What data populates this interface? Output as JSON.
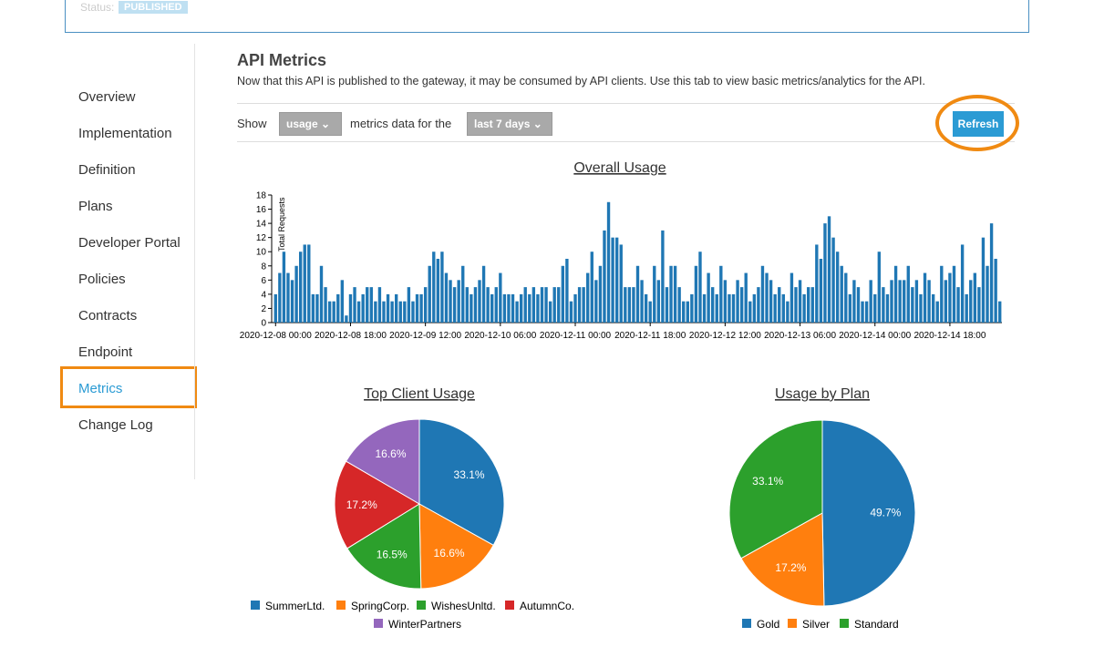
{
  "header": {
    "status_label": "Status:",
    "status_value": "PUBLISHED"
  },
  "nav": {
    "items": [
      "Overview",
      "Implementation",
      "Definition",
      "Plans",
      "Developer Portal",
      "Policies",
      "Contracts",
      "Endpoint",
      "Metrics",
      "Change Log"
    ]
  },
  "content": {
    "title": "API Metrics",
    "description": "Now that this API is published to the gateway, it may be consumed by API clients. Use this tab to view basic metrics/analytics for the API.",
    "show_label": "Show",
    "metric_select": "usage",
    "middle_label": "metrics data for the",
    "range_select": "last 7 days",
    "refresh_button": "Refresh"
  },
  "chart_data": [
    {
      "type": "bar",
      "title": "Overall Usage",
      "y_label": "Total Requests",
      "color": "#1f77b4",
      "ylim": [
        0,
        18
      ],
      "yticks": [
        0,
        2,
        4,
        6,
        8,
        10,
        12,
        14,
        16,
        18
      ],
      "categories": [
        "2020-12-08 00:00",
        null,
        null,
        null,
        null,
        null,
        null,
        null,
        null,
        null,
        null,
        null,
        null,
        null,
        null,
        null,
        null,
        null,
        "2020-12-08 18:00",
        null,
        null,
        null,
        null,
        null,
        null,
        null,
        null,
        null,
        null,
        null,
        null,
        null,
        null,
        null,
        null,
        null,
        "2020-12-09 12:00",
        null,
        null,
        null,
        null,
        null,
        null,
        null,
        null,
        null,
        null,
        null,
        null,
        null,
        null,
        null,
        null,
        null,
        "2020-12-10 06:00",
        null,
        null,
        null,
        null,
        null,
        null,
        null,
        null,
        null,
        null,
        null,
        null,
        null,
        null,
        null,
        null,
        null,
        "2020-12-11 00:00",
        null,
        null,
        null,
        null,
        null,
        null,
        null,
        null,
        null,
        null,
        null,
        null,
        null,
        null,
        null,
        null,
        null,
        "2020-12-11 18:00",
        null,
        null,
        null,
        null,
        null,
        null,
        null,
        null,
        null,
        null,
        null,
        null,
        null,
        null,
        null,
        null,
        null,
        "2020-12-12 12:00",
        null,
        null,
        null,
        null,
        null,
        null,
        null,
        null,
        null,
        null,
        null,
        null,
        null,
        null,
        null,
        null,
        null,
        "2020-12-13 06:00",
        null,
        null,
        null,
        null,
        null,
        null,
        null,
        null,
        null,
        null,
        null,
        null,
        null,
        null,
        null,
        null,
        null,
        "2020-12-14 00:00",
        null,
        null,
        null,
        null,
        null,
        null,
        null,
        null,
        null,
        null,
        null,
        null,
        null,
        null,
        null,
        null,
        null,
        "2020-12-14 18:00",
        null,
        null,
        null,
        null,
        null,
        null,
        null,
        null,
        null,
        null,
        null,
        null
      ],
      "values": [
        4,
        7,
        10,
        7,
        6,
        8,
        10,
        11,
        11,
        4,
        4,
        8,
        5,
        3,
        3,
        4,
        6,
        1,
        4,
        5,
        3,
        4,
        5,
        5,
        3,
        5,
        3,
        4,
        3,
        4,
        3,
        3,
        5,
        3,
        4,
        4,
        5,
        8,
        10,
        9,
        10,
        7,
        6,
        5,
        6,
        8,
        5,
        4,
        5,
        6,
        8,
        5,
        4,
        5,
        7,
        4,
        4,
        4,
        3,
        4,
        5,
        4,
        5,
        4,
        5,
        5,
        3,
        5,
        5,
        8,
        9,
        3,
        4,
        5,
        5,
        7,
        10,
        6,
        8,
        13,
        17,
        12,
        12,
        11,
        5,
        5,
        5,
        8,
        6,
        4,
        3,
        8,
        6,
        13,
        5,
        8,
        8,
        5,
        3,
        3,
        4,
        8,
        10,
        4,
        7,
        5,
        4,
        8,
        6,
        4,
        4,
        6,
        5,
        7,
        3,
        4,
        5,
        8,
        7,
        6,
        4,
        5,
        4,
        3,
        7,
        5,
        6,
        4,
        5,
        5,
        11,
        9,
        14,
        15,
        12,
        10,
        8,
        7,
        4,
        6,
        5,
        3,
        3,
        6,
        4,
        10,
        5,
        4,
        6,
        8,
        6,
        6,
        8,
        5,
        6,
        4,
        7,
        6,
        4,
        3,
        8,
        6,
        7,
        8,
        5,
        11,
        4,
        6,
        7,
        5,
        12,
        8,
        14,
        9,
        3
      ]
    },
    {
      "type": "pie",
      "title": "Top Client Usage",
      "categories": [
        "SummerLtd.",
        "SpringCorp.",
        "WishesUnltd.",
        "AutumnCo.",
        "WinterPartners"
      ],
      "values": [
        33.1,
        16.6,
        16.5,
        17.2,
        16.6
      ],
      "value_labels": [
        "33.1%",
        "16.6%",
        "16.5%",
        "17.2%",
        "16.6%"
      ],
      "colors": [
        "#1f77b4",
        "#ff7f0e",
        "#2ca02c",
        "#d62728",
        "#9467bd"
      ]
    },
    {
      "type": "pie",
      "title": "Usage by Plan",
      "categories": [
        "Gold",
        "Silver",
        "Standard"
      ],
      "values": [
        49.7,
        17.2,
        33.1
      ],
      "value_labels": [
        "49.7%",
        "17.2%",
        "33.1%"
      ],
      "colors": [
        "#1f77b4",
        "#ff7f0e",
        "#2ca02c"
      ]
    }
  ]
}
